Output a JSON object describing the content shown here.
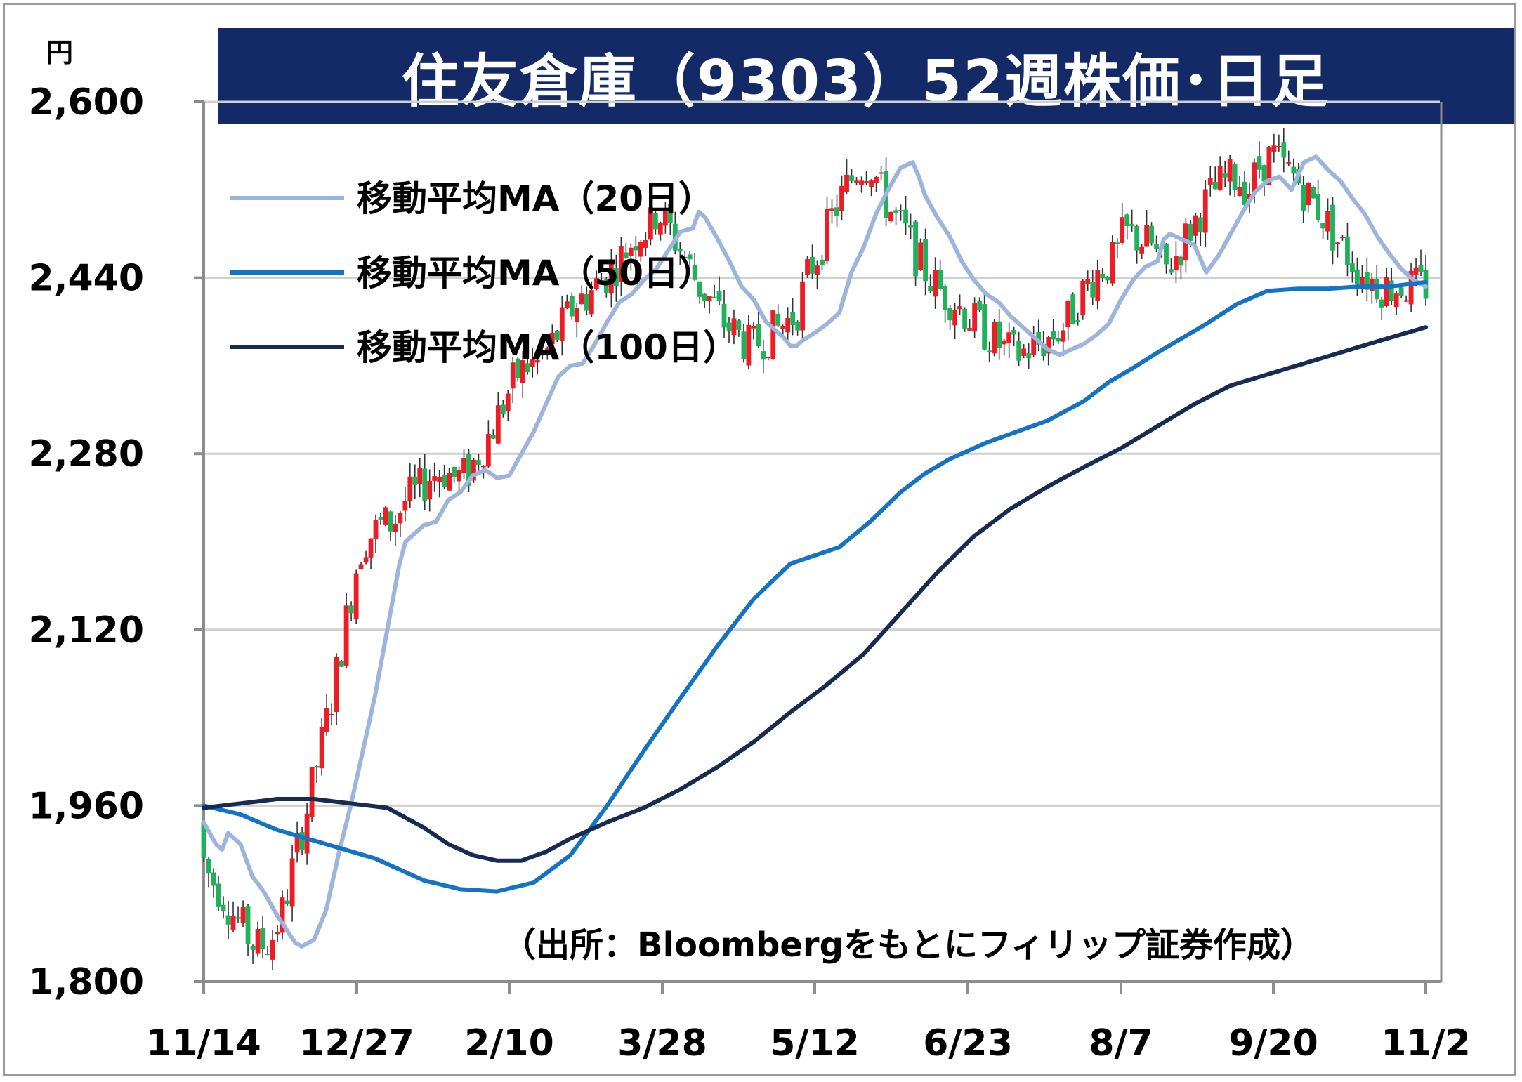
{
  "unit": "円",
  "title": "住友倉庫（9303）52週株価･日足",
  "source": "（出所：Bloombergをもとにフィリップ証券作成）",
  "colors": {
    "title_bg": "#132a66",
    "up": "#ee1c25",
    "down": "#1fb25a",
    "ma20": "#9db5dc",
    "ma50": "#1573c6",
    "ma100": "#182b52",
    "grid": "#cfcfcf"
  },
  "chart_data": {
    "type": "line",
    "title": "住友倉庫（9303）52週株価･日足",
    "ylabel": "円",
    "ylim": [
      1800,
      2600
    ],
    "yticks": [
      "1,800",
      "1,960",
      "2,120",
      "2,280",
      "2,440",
      "2,600"
    ],
    "ytick_values": [
      1800,
      1960,
      2120,
      2280,
      2440,
      2600
    ],
    "x_tick_labels": [
      "11/14",
      "12/27",
      "2/10",
      "3/28",
      "5/12",
      "6/23",
      "8/7",
      "9/20",
      "11/2"
    ],
    "grid": true,
    "legend_position": "top-left",
    "series": [
      {
        "name": "移動平均MA（20日）",
        "key": "ma20",
        "points": [
          [
            0,
            1945
          ],
          [
            0.05,
            1935
          ],
          [
            0.1,
            1925
          ],
          [
            0.15,
            1920
          ],
          [
            0.2,
            1935
          ],
          [
            0.25,
            1930
          ],
          [
            0.3,
            1925
          ],
          [
            0.35,
            1910
          ],
          [
            0.4,
            1895
          ],
          [
            0.45,
            1888
          ],
          [
            0.5,
            1880
          ],
          [
            0.55,
            1870
          ],
          [
            0.6,
            1860
          ],
          [
            0.65,
            1852
          ],
          [
            0.7,
            1843
          ],
          [
            0.75,
            1835
          ],
          [
            0.8,
            1832
          ],
          [
            0.85,
            1835
          ],
          [
            0.9,
            1838
          ],
          [
            1.0,
            1865
          ],
          [
            1.1,
            1915
          ],
          [
            1.2,
            1960
          ],
          [
            1.3,
            2010
          ],
          [
            1.4,
            2060
          ],
          [
            1.5,
            2120
          ],
          [
            1.6,
            2180
          ],
          [
            1.65,
            2200
          ],
          [
            1.7,
            2205
          ],
          [
            1.8,
            2215
          ],
          [
            1.9,
            2218
          ],
          [
            2.0,
            2238
          ],
          [
            2.1,
            2245
          ],
          [
            2.2,
            2260
          ],
          [
            2.3,
            2265
          ],
          [
            2.35,
            2262
          ],
          [
            2.4,
            2258
          ],
          [
            2.5,
            2260
          ],
          [
            2.6,
            2280
          ],
          [
            2.7,
            2300
          ],
          [
            2.8,
            2325
          ],
          [
            2.9,
            2350
          ],
          [
            3.0,
            2360
          ],
          [
            3.1,
            2362
          ],
          [
            3.2,
            2380
          ],
          [
            3.3,
            2400
          ],
          [
            3.4,
            2418
          ],
          [
            3.5,
            2425
          ],
          [
            3.6,
            2438
          ],
          [
            3.7,
            2448
          ],
          [
            3.8,
            2465
          ],
          [
            3.9,
            2482
          ],
          [
            4.0,
            2485
          ],
          [
            4.05,
            2500
          ],
          [
            4.1,
            2495
          ],
          [
            4.2,
            2476
          ],
          [
            4.3,
            2455
          ],
          [
            4.4,
            2432
          ],
          [
            4.5,
            2420
          ],
          [
            4.6,
            2400
          ],
          [
            4.7,
            2390
          ],
          [
            4.75,
            2385
          ],
          [
            4.8,
            2378
          ],
          [
            4.85,
            2378
          ],
          [
            4.9,
            2383
          ],
          [
            5.0,
            2390
          ],
          [
            5.1,
            2398
          ],
          [
            5.2,
            2408
          ],
          [
            5.3,
            2445
          ],
          [
            5.4,
            2468
          ],
          [
            5.5,
            2498
          ],
          [
            5.6,
            2520
          ],
          [
            5.7,
            2540
          ],
          [
            5.8,
            2545
          ],
          [
            5.85,
            2532
          ],
          [
            5.9,
            2515
          ],
          [
            6.0,
            2495
          ],
          [
            6.1,
            2478
          ],
          [
            6.2,
            2455
          ],
          [
            6.3,
            2438
          ],
          [
            6.4,
            2425
          ],
          [
            6.5,
            2418
          ],
          [
            6.6,
            2405
          ],
          [
            6.7,
            2395
          ],
          [
            6.8,
            2385
          ],
          [
            6.9,
            2375
          ],
          [
            7.0,
            2370
          ],
          [
            7.1,
            2375
          ],
          [
            7.2,
            2380
          ],
          [
            7.3,
            2388
          ],
          [
            7.4,
            2398
          ],
          [
            7.5,
            2420
          ],
          [
            7.6,
            2438
          ],
          [
            7.7,
            2450
          ],
          [
            7.8,
            2455
          ],
          [
            7.85,
            2475
          ],
          [
            7.9,
            2480
          ],
          [
            8.0,
            2475
          ],
          [
            8.1,
            2470
          ],
          [
            8.2,
            2445
          ],
          [
            8.3,
            2460
          ],
          [
            8.4,
            2480
          ],
          [
            8.5,
            2500
          ],
          [
            8.6,
            2518
          ],
          [
            8.7,
            2528
          ],
          [
            8.8,
            2532
          ],
          [
            8.9,
            2520
          ],
          [
            9.0,
            2545
          ],
          [
            9.1,
            2550
          ],
          [
            9.2,
            2538
          ],
          [
            9.3,
            2528
          ],
          [
            9.4,
            2512
          ],
          [
            9.5,
            2498
          ],
          [
            9.6,
            2478
          ],
          [
            9.7,
            2462
          ],
          [
            9.8,
            2448
          ],
          [
            9.9,
            2438
          ],
          [
            10.0,
            2432
          ]
        ],
        "note": ""
      },
      {
        "name": "移動平均MA（50日）",
        "key": "ma50",
        "points": [],
        "note": ""
      },
      {
        "name": "移動平均MA（100日）",
        "key": "ma100",
        "points": [],
        "note": ""
      }
    ]
  }
}
